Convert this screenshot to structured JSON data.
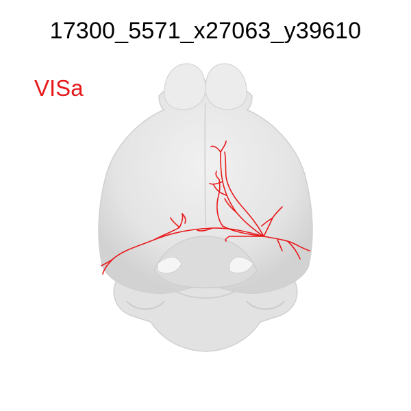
{
  "title": "17300_5571_x27063_y39610",
  "region_label": "VISa",
  "colors": {
    "background": "#ffffff",
    "brain_fill": "#e6e6e6",
    "brain_shadow": "#cfcfcf",
    "brain_highlight": "#f4f4f4",
    "neuron": "#e8191b",
    "region_label": "#e8191b"
  }
}
